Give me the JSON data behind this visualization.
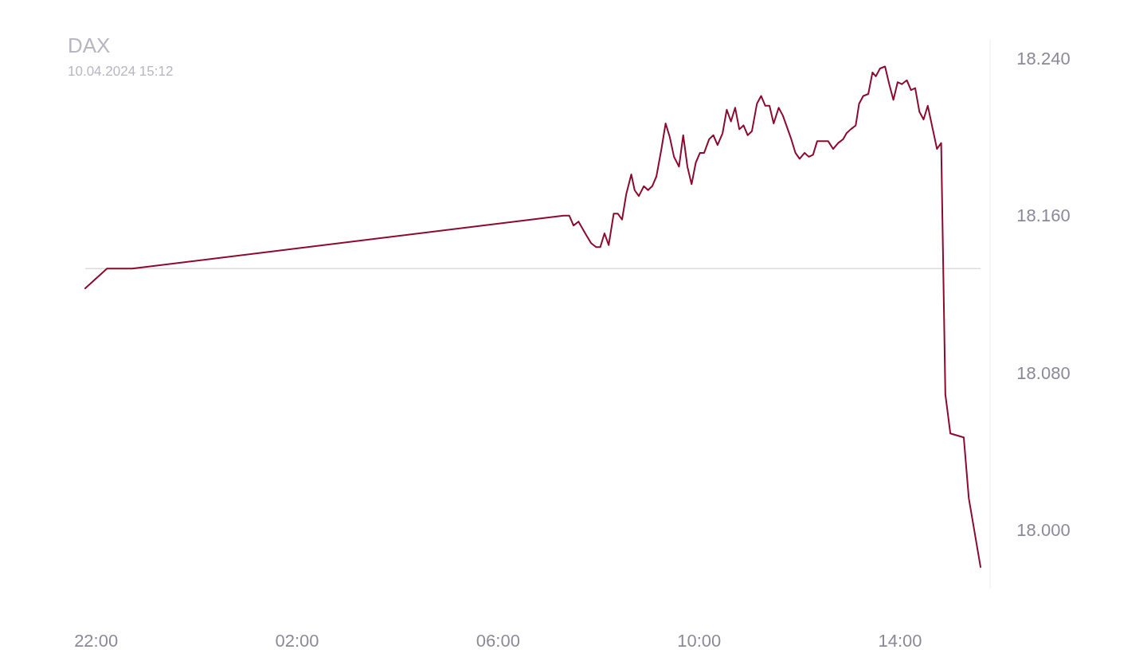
{
  "chart_data": {
    "type": "line",
    "title": "DAX",
    "subtitle": "10.04.2024 15:12",
    "xlim": [
      "2024-04-09T21:47",
      "2024-04-10T15:36"
    ],
    "ylim": [
      17970,
      18250
    ],
    "xticks": [
      {
        "value": "2024-04-09T22:00",
        "label": "22:00"
      },
      {
        "value": "2024-04-10T02:00",
        "label": "02:00"
      },
      {
        "value": "2024-04-10T06:00",
        "label": "06:00"
      },
      {
        "value": "2024-04-10T10:00",
        "label": "10:00"
      },
      {
        "value": "2024-04-10T14:00",
        "label": "14:00"
      }
    ],
    "yticks": [
      {
        "value": 18000,
        "label": "18.000"
      },
      {
        "value": 18080,
        "label": "18.080"
      },
      {
        "value": 18160,
        "label": "18.160"
      },
      {
        "value": 18240,
        "label": "18.240"
      }
    ],
    "marker": "none",
    "line_style": "solid",
    "ref_lines": [
      {
        "axis": "y",
        "value": 18133,
        "color": "#dcdcdc"
      }
    ],
    "series": [
      {
        "color": "#8b0a2e",
        "x": [
          "2024-04-09T21:47",
          "2024-04-09T22:13",
          "2024-04-09T22:43",
          "2024-04-10T07:18",
          "2024-04-10T07:25",
          "2024-04-10T07:30",
          "2024-04-10T07:36",
          "2024-04-10T07:44",
          "2024-04-10T07:51",
          "2024-04-10T07:57",
          "2024-04-10T08:02",
          "2024-04-10T08:07",
          "2024-04-10T08:12",
          "2024-04-10T08:18",
          "2024-04-10T08:23",
          "2024-04-10T08:28",
          "2024-04-10T08:33",
          "2024-04-10T08:39",
          "2024-04-10T08:43",
          "2024-04-10T08:48",
          "2024-04-10T08:54",
          "2024-04-10T08:59",
          "2024-04-10T09:04",
          "2024-04-10T09:09",
          "2024-04-10T09:15",
          "2024-04-10T09:20",
          "2024-04-10T09:25",
          "2024-04-10T09:30",
          "2024-04-10T09:36",
          "2024-04-10T09:41",
          "2024-04-10T09:46",
          "2024-04-10T09:51",
          "2024-04-10T09:56",
          "2024-04-10T10:01",
          "2024-04-10T10:06",
          "2024-04-10T10:12",
          "2024-04-10T10:17",
          "2024-04-10T10:22",
          "2024-04-10T10:28",
          "2024-04-10T10:33",
          "2024-04-10T10:38",
          "2024-04-10T10:43",
          "2024-04-10T10:48",
          "2024-04-10T10:53",
          "2024-04-10T10:58",
          "2024-04-10T11:03",
          "2024-04-10T11:09",
          "2024-04-10T11:14",
          "2024-04-10T11:19",
          "2024-04-10T11:24",
          "2024-04-10T11:29",
          "2024-04-10T11:35",
          "2024-04-10T11:40",
          "2024-04-10T11:45",
          "2024-04-10T11:50",
          "2024-04-10T11:55",
          "2024-04-10T12:00",
          "2024-04-10T12:06",
          "2024-04-10T12:11",
          "2024-04-10T12:16",
          "2024-04-10T12:21",
          "2024-04-10T12:27",
          "2024-04-10T12:34",
          "2024-04-10T12:40",
          "2024-04-10T12:46",
          "2024-04-10T12:52",
          "2024-04-10T12:56",
          "2024-04-10T13:01",
          "2024-04-10T13:07",
          "2024-04-10T13:11",
          "2024-04-10T13:16",
          "2024-04-10T13:22",
          "2024-04-10T13:27",
          "2024-04-10T13:31",
          "2024-04-10T13:36",
          "2024-04-10T13:42",
          "2024-04-10T13:47",
          "2024-04-10T13:52",
          "2024-04-10T13:57",
          "2024-04-10T14:02",
          "2024-04-10T14:08",
          "2024-04-10T14:13",
          "2024-04-10T14:18",
          "2024-04-10T14:23",
          "2024-04-10T14:28",
          "2024-04-10T14:33",
          "2024-04-10T14:39",
          "2024-04-10T14:44",
          "2024-04-10T14:49",
          "2024-04-10T14:54",
          "2024-04-10T15:00",
          "2024-04-10T15:16",
          "2024-04-10T15:22",
          "2024-04-10T15:36"
        ],
        "values": [
          18123,
          18133,
          18133,
          18160,
          18160,
          18155,
          18157,
          18151,
          18146,
          18144,
          18144,
          18151,
          18145,
          18161,
          18161,
          18158,
          18171,
          18181,
          18173,
          18170,
          18175,
          18173,
          18175,
          18180,
          18194,
          18207,
          18200,
          18190,
          18185,
          18201,
          18185,
          18176,
          18187,
          18192,
          18192,
          18199,
          18201,
          18196,
          18202,
          18214,
          18208,
          18215,
          18204,
          18206,
          18201,
          18203,
          18217,
          18221,
          18216,
          18216,
          18207,
          18215,
          18211,
          18205,
          18199,
          18192,
          18189,
          18192,
          18190,
          18191,
          18198,
          18198,
          18198,
          18194,
          18197,
          18199,
          18202,
          18204,
          18206,
          18217,
          18221,
          18222,
          18233,
          18231,
          18235,
          18236,
          18227,
          18219,
          18228,
          18227,
          18229,
          18224,
          18225,
          18213,
          18209,
          18216,
          18204,
          18194,
          18197,
          18069,
          18049,
          18047,
          18016,
          17981
        ]
      }
    ]
  }
}
